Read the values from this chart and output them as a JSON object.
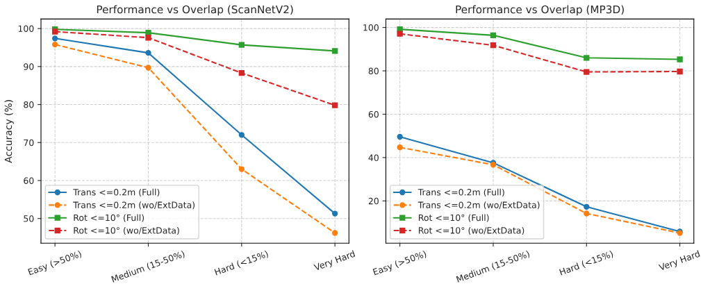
{
  "chart_data": [
    {
      "type": "line",
      "title": "Performance vs Overlap (ScanNetV2)",
      "ylabel": "Accuracy (%)",
      "categories": [
        "Easy (>50%)",
        "Medium (15-50%)",
        "Hard (<15%)",
        "Very Hard"
      ],
      "ylim": [
        43.5,
        102.5
      ],
      "yticks": [
        50,
        60,
        70,
        80,
        90,
        100
      ],
      "grid": true,
      "legend": "bottom left",
      "series": [
        {
          "name": "Trans <=0.2m (Full)",
          "color": "#1f77b4",
          "marker": "circle",
          "line_style": "solid",
          "values": [
            97.4,
            93.6,
            72.0,
            51.3
          ]
        },
        {
          "name": "Trans <=0.2m (wo/ExtData)",
          "color": "#ff7f0e",
          "marker": "circle",
          "line_style": "dashed",
          "values": [
            95.8,
            89.7,
            63.0,
            46.2
          ]
        },
        {
          "name": "Rot <=10° (Full)",
          "color": "#2ca02c",
          "marker": "square",
          "line_style": "solid",
          "values": [
            99.8,
            98.9,
            95.7,
            94.1
          ]
        },
        {
          "name": "Rot <=10° (wo/ExtData)",
          "color": "#d62728",
          "marker": "square",
          "line_style": "dashed",
          "values": [
            99.2,
            97.6,
            88.3,
            79.8
          ]
        }
      ]
    },
    {
      "type": "line",
      "title": "Performance vs Overlap (MP3D)",
      "categories": [
        "Easy (>50%)",
        "Medium (15-50%)",
        "Hard (<15%)",
        "Very Hard"
      ],
      "ylim": [
        0.5,
        103.9
      ],
      "yticks": [
        20,
        40,
        60,
        80,
        100
      ],
      "grid": true,
      "legend": "bottom left",
      "series": [
        {
          "name": "Trans <=0.2m (Full)",
          "color": "#1f77b4",
          "marker": "circle",
          "line_style": "solid",
          "values": [
            49.6,
            37.6,
            17.3,
            5.9
          ]
        },
        {
          "name": "Trans <=0.2m (wo/ExtData)",
          "color": "#ff7f0e",
          "marker": "circle",
          "line_style": "dashed",
          "values": [
            44.7,
            36.7,
            14.2,
            5.2
          ]
        },
        {
          "name": "Rot <=10° (Full)",
          "color": "#2ca02c",
          "marker": "square",
          "line_style": "solid",
          "values": [
            99.2,
            96.4,
            86.0,
            85.3
          ]
        },
        {
          "name": "Rot <=10° (wo/ExtData)",
          "color": "#d62728",
          "marker": "square",
          "line_style": "dashed",
          "values": [
            97.1,
            91.8,
            79.5,
            79.7
          ]
        }
      ]
    }
  ]
}
